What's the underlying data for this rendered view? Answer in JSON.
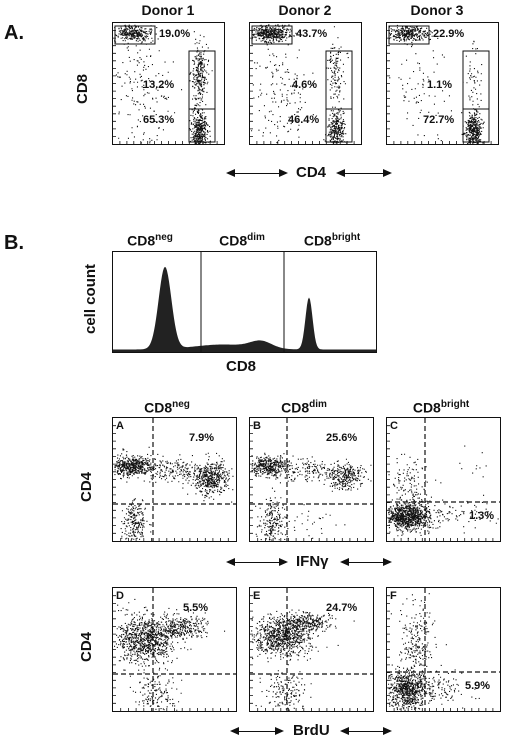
{
  "panelA": {
    "letter": "A.",
    "donors": [
      "Donor 1",
      "Donor 2",
      "Donor 3"
    ],
    "y_label": "CD8",
    "x_label": "CD4",
    "plots": [
      {
        "pct_top": "19.0%",
        "pct_mid": "13.2%",
        "pct_bot": "65.3%"
      },
      {
        "pct_top": "43.7%",
        "pct_mid": "4.6%",
        "pct_bot": "46.4%"
      },
      {
        "pct_top": "22.9%",
        "pct_mid": "1.1%",
        "pct_bot": "72.7%"
      }
    ]
  },
  "panelB": {
    "letter": "B.",
    "histogram": {
      "y_label": "cell count",
      "x_label": "CD8",
      "gates": [
        {
          "base": "CD8",
          "sup": "neg"
        },
        {
          "base": "CD8",
          "sup": "dim"
        },
        {
          "base": "CD8",
          "sup": "bright"
        }
      ]
    },
    "columns": [
      {
        "base": "CD8",
        "sup": "neg"
      },
      {
        "base": "CD8",
        "sup": "dim"
      },
      {
        "base": "CD8",
        "sup": "bright"
      }
    ],
    "row1": {
      "y_label": "CD4",
      "x_label": "IFNγ",
      "plots": [
        {
          "letter": "A",
          "pct": "7.9%"
        },
        {
          "letter": "B",
          "pct": "25.6%"
        },
        {
          "letter": "C",
          "pct": "1.3%"
        }
      ]
    },
    "row2": {
      "y_label": "CD4",
      "x_label": "BrdU",
      "plots": [
        {
          "letter": "D",
          "pct": "5.5%"
        },
        {
          "letter": "E",
          "pct": "24.7%"
        },
        {
          "letter": "F",
          "pct": "5.9%"
        }
      ]
    }
  }
}
